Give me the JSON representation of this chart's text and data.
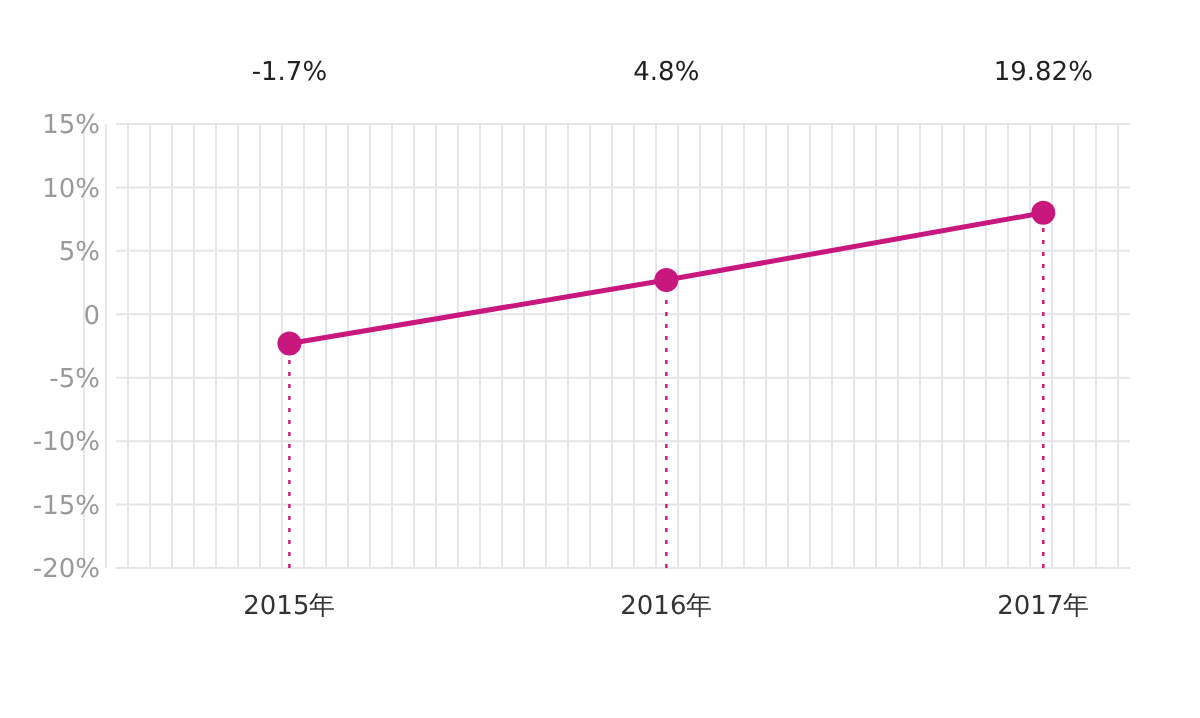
{
  "chart_data": {
    "type": "line",
    "categories": [
      "2015年",
      "2016年",
      "2017年"
    ],
    "series": [
      {
        "color": "#c8177d",
        "values": [
          -2.3,
          2.7,
          8.0
        ],
        "errors": [
          [
            -20,
            -2.3
          ],
          [
            -20,
            2.7
          ],
          [
            -20,
            8.0
          ]
        ]
      }
    ],
    "annotations": [
      "-1.7%",
      "4.8%",
      "19.82%"
    ],
    "ylim": [
      -20,
      15
    ],
    "yticks": [
      {
        "value": -20,
        "label": "-20%"
      },
      {
        "value": -15,
        "label": "-15%"
      },
      {
        "value": -10,
        "label": "-10%"
      },
      {
        "value": -5,
        "label": "-5%"
      },
      0,
      {
        "value": 5,
        "label": "5%"
      },
      {
        "value": 10,
        "label": "10%"
      },
      {
        "value": 15,
        "label": "15%"
      }
    ],
    "grid": true,
    "marker": "circle",
    "line_style": "solid"
  }
}
